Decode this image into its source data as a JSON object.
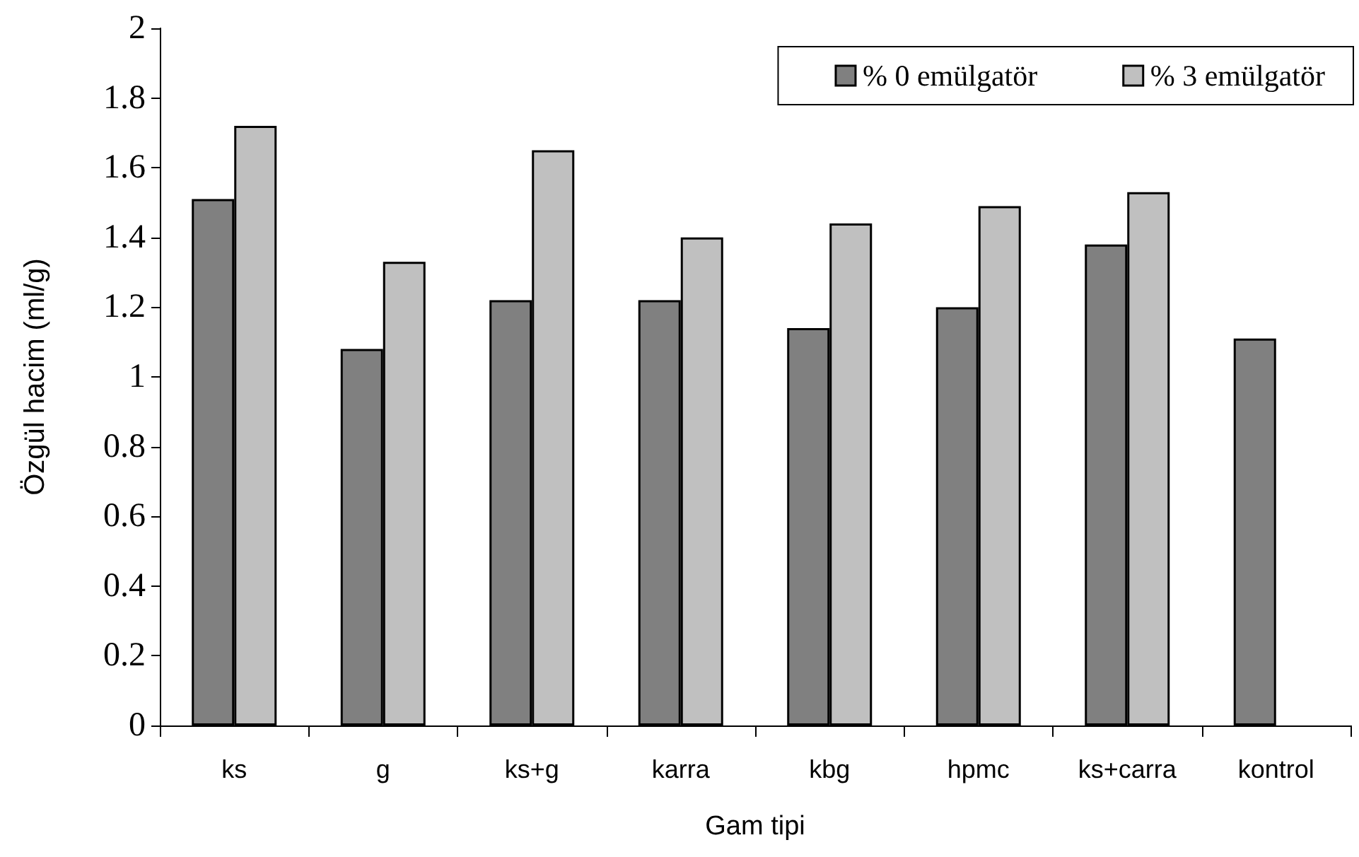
{
  "chart_data": {
    "type": "bar",
    "xlabel": "Gam tipi",
    "ylabel": "Özgül hacim (ml/g)",
    "categories": [
      "ks",
      "g",
      "ks+g",
      "karra",
      "kbg",
      "hpmc",
      "ks+carra",
      "kontrol"
    ],
    "series": [
      {
        "name": "% 0 emülgatör",
        "color": "#808080",
        "values": [
          1.51,
          1.08,
          1.22,
          1.22,
          1.14,
          1.2,
          1.38,
          1.11
        ]
      },
      {
        "name": "% 3 emülgatör",
        "color": "#c0c0c0",
        "values": [
          1.72,
          1.33,
          1.65,
          1.4,
          1.44,
          1.49,
          1.53,
          null
        ]
      }
    ],
    "ylim": [
      0,
      2
    ],
    "yticks": [
      0,
      0.2,
      0.4,
      0.6,
      0.8,
      1,
      1.2,
      1.4,
      1.6,
      1.8,
      2
    ],
    "grid": false,
    "legend": "top right"
  }
}
